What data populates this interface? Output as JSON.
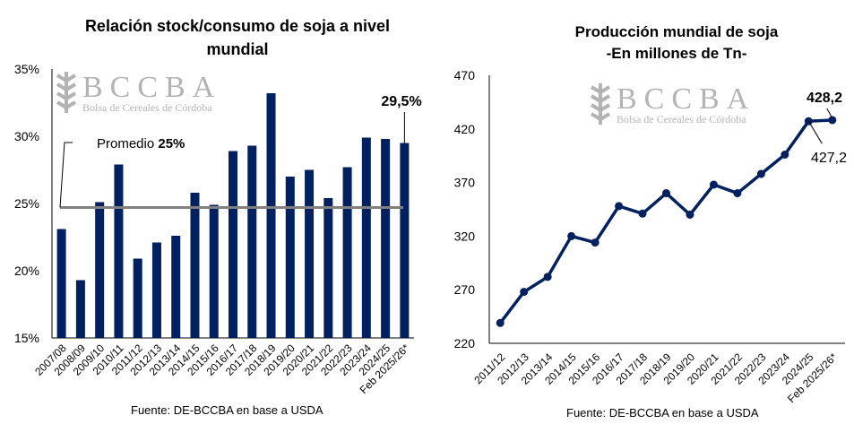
{
  "chart_data": [
    {
      "type": "bar",
      "title": "Relación stock/consumo de soja a nivel mundial",
      "categories": [
        "2007/08",
        "2008/09",
        "2009/10",
        "2010/11",
        "2011/12",
        "2012/13",
        "2013/14",
        "2014/15",
        "2015/16",
        "2016/17",
        "2017/18",
        "2018/19",
        "2019/20",
        "2020/21",
        "2021/22",
        "2022/23",
        "2023/24",
        "2024/25",
        "Feb 2025/26*"
      ],
      "values": [
        23.1,
        19.3,
        25.1,
        27.9,
        20.9,
        22.1,
        22.6,
        25.8,
        24.9,
        28.9,
        29.3,
        33.2,
        27.0,
        27.5,
        25.4,
        27.7,
        29.9,
        29.8,
        29.5
      ],
      "ylim": [
        15,
        35
      ],
      "yticks": [
        "15%",
        "20%",
        "25%",
        "30%",
        "35%"
      ],
      "average": 24.7,
      "average_label_prefix": "Promedio ",
      "average_label_value": "25%",
      "last_value_label": "29,5%",
      "bar_color": "#002060",
      "average_color": "#808080",
      "source": "Fuente: DE-BCCBA en base a USDA"
    },
    {
      "type": "line",
      "title": "Producción mundial de soja",
      "subtitle": "-En millones de Tn-",
      "categories": [
        "2011/12",
        "2012/13",
        "2013/14",
        "2014/15",
        "2015/16",
        "2016/17",
        "2017/18",
        "2018/19",
        "2019/20",
        "2020/21",
        "2021/22",
        "2022/23",
        "2023/24",
        "2024/25",
        "Feb 2025/26*"
      ],
      "values": [
        239,
        268,
        282,
        320,
        314,
        348,
        341,
        360,
        340,
        368,
        360,
        378,
        396,
        427.2,
        428.2
      ],
      "ylim": [
        220,
        470
      ],
      "yticks": [
        "220",
        "270",
        "320",
        "370",
        "420",
        "470"
      ],
      "label_prev": "427,2",
      "label_last": "428,2",
      "line_color": "#002060",
      "source": "Fuente: DE-BCCBA en base a USDA"
    }
  ],
  "watermark": {
    "name": "BCCBA",
    "subtitle": "Bolsa de Cereales de Córdoba"
  }
}
